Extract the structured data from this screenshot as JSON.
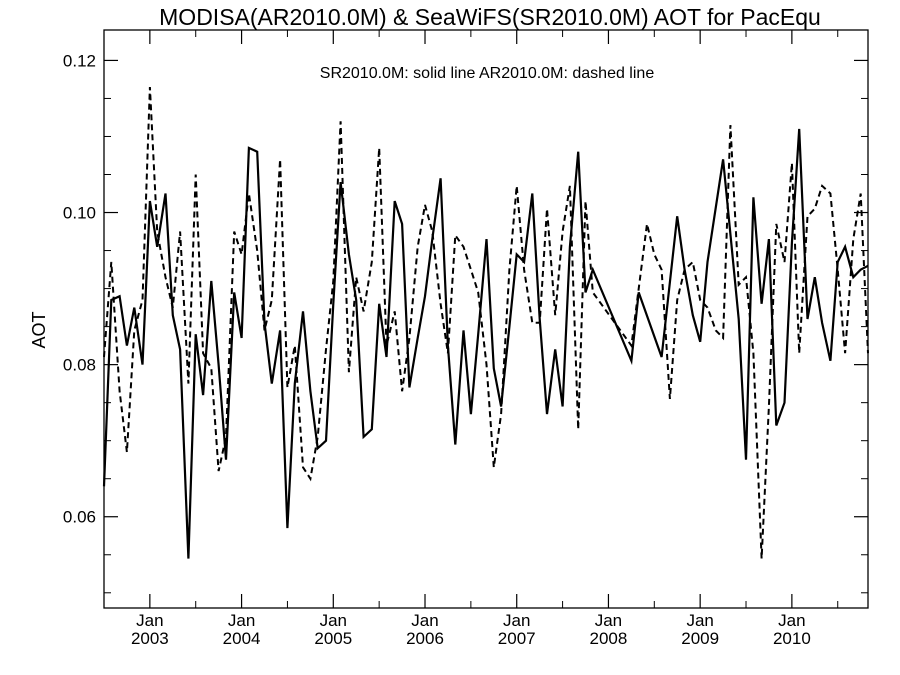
{
  "chart_data": {
    "type": "line",
    "title": "MODISA(AR2010.0M) & SeaWiFS(SR2010.0M)  AOT for PacEqu",
    "legend_text": "SR2010.0M: solid line   AR2010.0M: dashed line",
    "ylabel": "AOT",
    "xlabel": "",
    "ylim": [
      0.048,
      0.124
    ],
    "xlim": [
      2002.5,
      2010.83
    ],
    "y_ticks": [
      {
        "value": 0.06,
        "label": "0.06"
      },
      {
        "value": 0.08,
        "label": "0.08"
      },
      {
        "value": 0.1,
        "label": "0.10"
      },
      {
        "value": 0.12,
        "label": "0.12"
      }
    ],
    "x_ticks": [
      {
        "value": 2003,
        "label": "Jan",
        "sublabel": "2003"
      },
      {
        "value": 2004,
        "label": "Jan",
        "sublabel": "2004"
      },
      {
        "value": 2005,
        "label": "Jan",
        "sublabel": "2005"
      },
      {
        "value": 2006,
        "label": "Jan",
        "sublabel": "2006"
      },
      {
        "value": 2007,
        "label": "Jan",
        "sublabel": "2007"
      },
      {
        "value": 2008,
        "label": "Jan",
        "sublabel": "2008"
      },
      {
        "value": 2009,
        "label": "Jan",
        "sublabel": "2009"
      },
      {
        "value": 2010,
        "label": "Jan",
        "sublabel": "2010"
      }
    ],
    "series": [
      {
        "name": "SR2010.0M",
        "style": "solid",
        "color": "#000000",
        "x": [
          2002.5,
          2002.58,
          2002.67,
          2002.75,
          2002.83,
          2002.92,
          2003.0,
          2003.08,
          2003.17,
          2003.25,
          2003.33,
          2003.42,
          2003.5,
          2003.58,
          2003.67,
          2003.75,
          2003.83,
          2003.92,
          2004.0,
          2004.08,
          2004.17,
          2004.25,
          2004.33,
          2004.42,
          2004.5,
          2004.58,
          2004.67,
          2004.75,
          2004.83,
          2004.92,
          2005.0,
          2005.08,
          2005.17,
          2005.25,
          2005.33,
          2005.42,
          2005.5,
          2005.58,
          2005.67,
          2005.75,
          2005.83,
          2005.92,
          2006.0,
          2006.08,
          2006.17,
          2006.25,
          2006.33,
          2006.42,
          2006.5,
          2006.58,
          2006.67,
          2006.75,
          2006.83,
          2006.92,
          2007.0,
          2007.08,
          2007.17,
          2007.25,
          2007.33,
          2007.42,
          2007.5,
          2007.58,
          2007.67,
          2007.75,
          2007.83,
          2008.25,
          2008.33,
          2008.58,
          2008.75,
          2008.83,
          2008.92,
          2009.0,
          2009.08,
          2009.25,
          2009.42,
          2009.5,
          2009.58,
          2009.67,
          2009.75,
          2009.83,
          2009.92,
          2010.0,
          2010.08,
          2010.17,
          2010.25,
          2010.33,
          2010.42,
          2010.5,
          2010.58,
          2010.67,
          2010.75,
          2010.83
        ],
        "values": [
          0.064,
          0.0885,
          0.089,
          0.0825,
          0.0875,
          0.08,
          0.1015,
          0.0955,
          0.1025,
          0.0865,
          0.082,
          0.0545,
          0.084,
          0.076,
          0.091,
          0.08,
          0.0675,
          0.0895,
          0.0835,
          0.1085,
          0.108,
          0.0855,
          0.0775,
          0.0845,
          0.0585,
          0.0775,
          0.087,
          0.0765,
          0.069,
          0.07,
          0.088,
          0.104,
          0.0945,
          0.0885,
          0.0705,
          0.0715,
          0.088,
          0.081,
          0.1015,
          0.0985,
          0.077,
          0.0835,
          0.089,
          0.0965,
          0.1045,
          0.0825,
          0.0695,
          0.0845,
          0.0735,
          0.084,
          0.0965,
          0.0795,
          0.0745,
          0.085,
          0.0945,
          0.0935,
          0.1025,
          0.086,
          0.0735,
          0.082,
          0.0745,
          0.0955,
          0.108,
          0.0895,
          0.0925,
          0.0805,
          0.0895,
          0.081,
          0.0995,
          0.0925,
          0.0865,
          0.083,
          0.0935,
          0.107,
          0.086,
          0.0675,
          0.102,
          0.088,
          0.0965,
          0.072,
          0.075,
          0.096,
          0.111,
          0.086,
          0.0915,
          0.0855,
          0.0805,
          0.0935,
          0.0955,
          0.0915,
          0.0925,
          0.093
        ]
      },
      {
        "name": "AR2010.0M",
        "style": "dashed",
        "color": "#000000",
        "x": [
          2002.5,
          2002.58,
          2002.67,
          2002.75,
          2002.83,
          2002.92,
          2003.0,
          2003.08,
          2003.17,
          2003.25,
          2003.33,
          2003.42,
          2003.5,
          2003.58,
          2003.67,
          2003.75,
          2003.83,
          2003.92,
          2004.0,
          2004.08,
          2004.17,
          2004.25,
          2004.33,
          2004.42,
          2004.5,
          2004.58,
          2004.67,
          2004.75,
          2004.83,
          2004.92,
          2005.0,
          2005.08,
          2005.17,
          2005.25,
          2005.33,
          2005.42,
          2005.5,
          2005.58,
          2005.67,
          2005.75,
          2005.83,
          2005.92,
          2006.0,
          2006.08,
          2006.17,
          2006.25,
          2006.33,
          2006.42,
          2006.5,
          2006.58,
          2006.67,
          2006.75,
          2006.83,
          2006.92,
          2007.0,
          2007.08,
          2007.17,
          2007.25,
          2007.33,
          2007.42,
          2007.5,
          2007.58,
          2007.67,
          2007.75,
          2007.83,
          2008.25,
          2008.42,
          2008.5,
          2008.58,
          2008.67,
          2008.75,
          2008.83,
          2008.92,
          2009.0,
          2009.08,
          2009.17,
          2009.25,
          2009.33,
          2009.42,
          2009.5,
          2009.58,
          2009.67,
          2009.75,
          2009.83,
          2009.92,
          2010.0,
          2010.08,
          2010.17,
          2010.25,
          2010.33,
          2010.42,
          2010.5,
          2010.58,
          2010.67,
          2010.75,
          2010.83
        ],
        "values": [
          0.081,
          0.0935,
          0.0765,
          0.0685,
          0.0845,
          0.0885,
          0.1165,
          0.0975,
          0.0915,
          0.0875,
          0.0975,
          0.0775,
          0.105,
          0.0815,
          0.0795,
          0.066,
          0.0705,
          0.0975,
          0.0945,
          0.1025,
          0.095,
          0.0845,
          0.0885,
          0.107,
          0.077,
          0.0825,
          0.0665,
          0.065,
          0.0705,
          0.082,
          0.091,
          0.112,
          0.079,
          0.0915,
          0.087,
          0.0935,
          0.1085,
          0.0825,
          0.087,
          0.0765,
          0.0835,
          0.0955,
          0.101,
          0.0975,
          0.088,
          0.0815,
          0.097,
          0.0955,
          0.0925,
          0.0895,
          0.08,
          0.0665,
          0.0735,
          0.0925,
          0.1035,
          0.0925,
          0.0855,
          0.0855,
          0.1005,
          0.0865,
          0.0975,
          0.1035,
          0.0715,
          0.1015,
          0.0895,
          0.0825,
          0.0985,
          0.0945,
          0.0925,
          0.0755,
          0.0885,
          0.0925,
          0.0935,
          0.0885,
          0.0875,
          0.0845,
          0.0835,
          0.1115,
          0.0905,
          0.0915,
          0.0815,
          0.0545,
          0.0745,
          0.0985,
          0.0935,
          0.1065,
          0.0815,
          0.0995,
          0.1005,
          0.1035,
          0.1025,
          0.0925,
          0.0815,
          0.0965,
          0.1025,
          0.0815
        ]
      }
    ]
  }
}
